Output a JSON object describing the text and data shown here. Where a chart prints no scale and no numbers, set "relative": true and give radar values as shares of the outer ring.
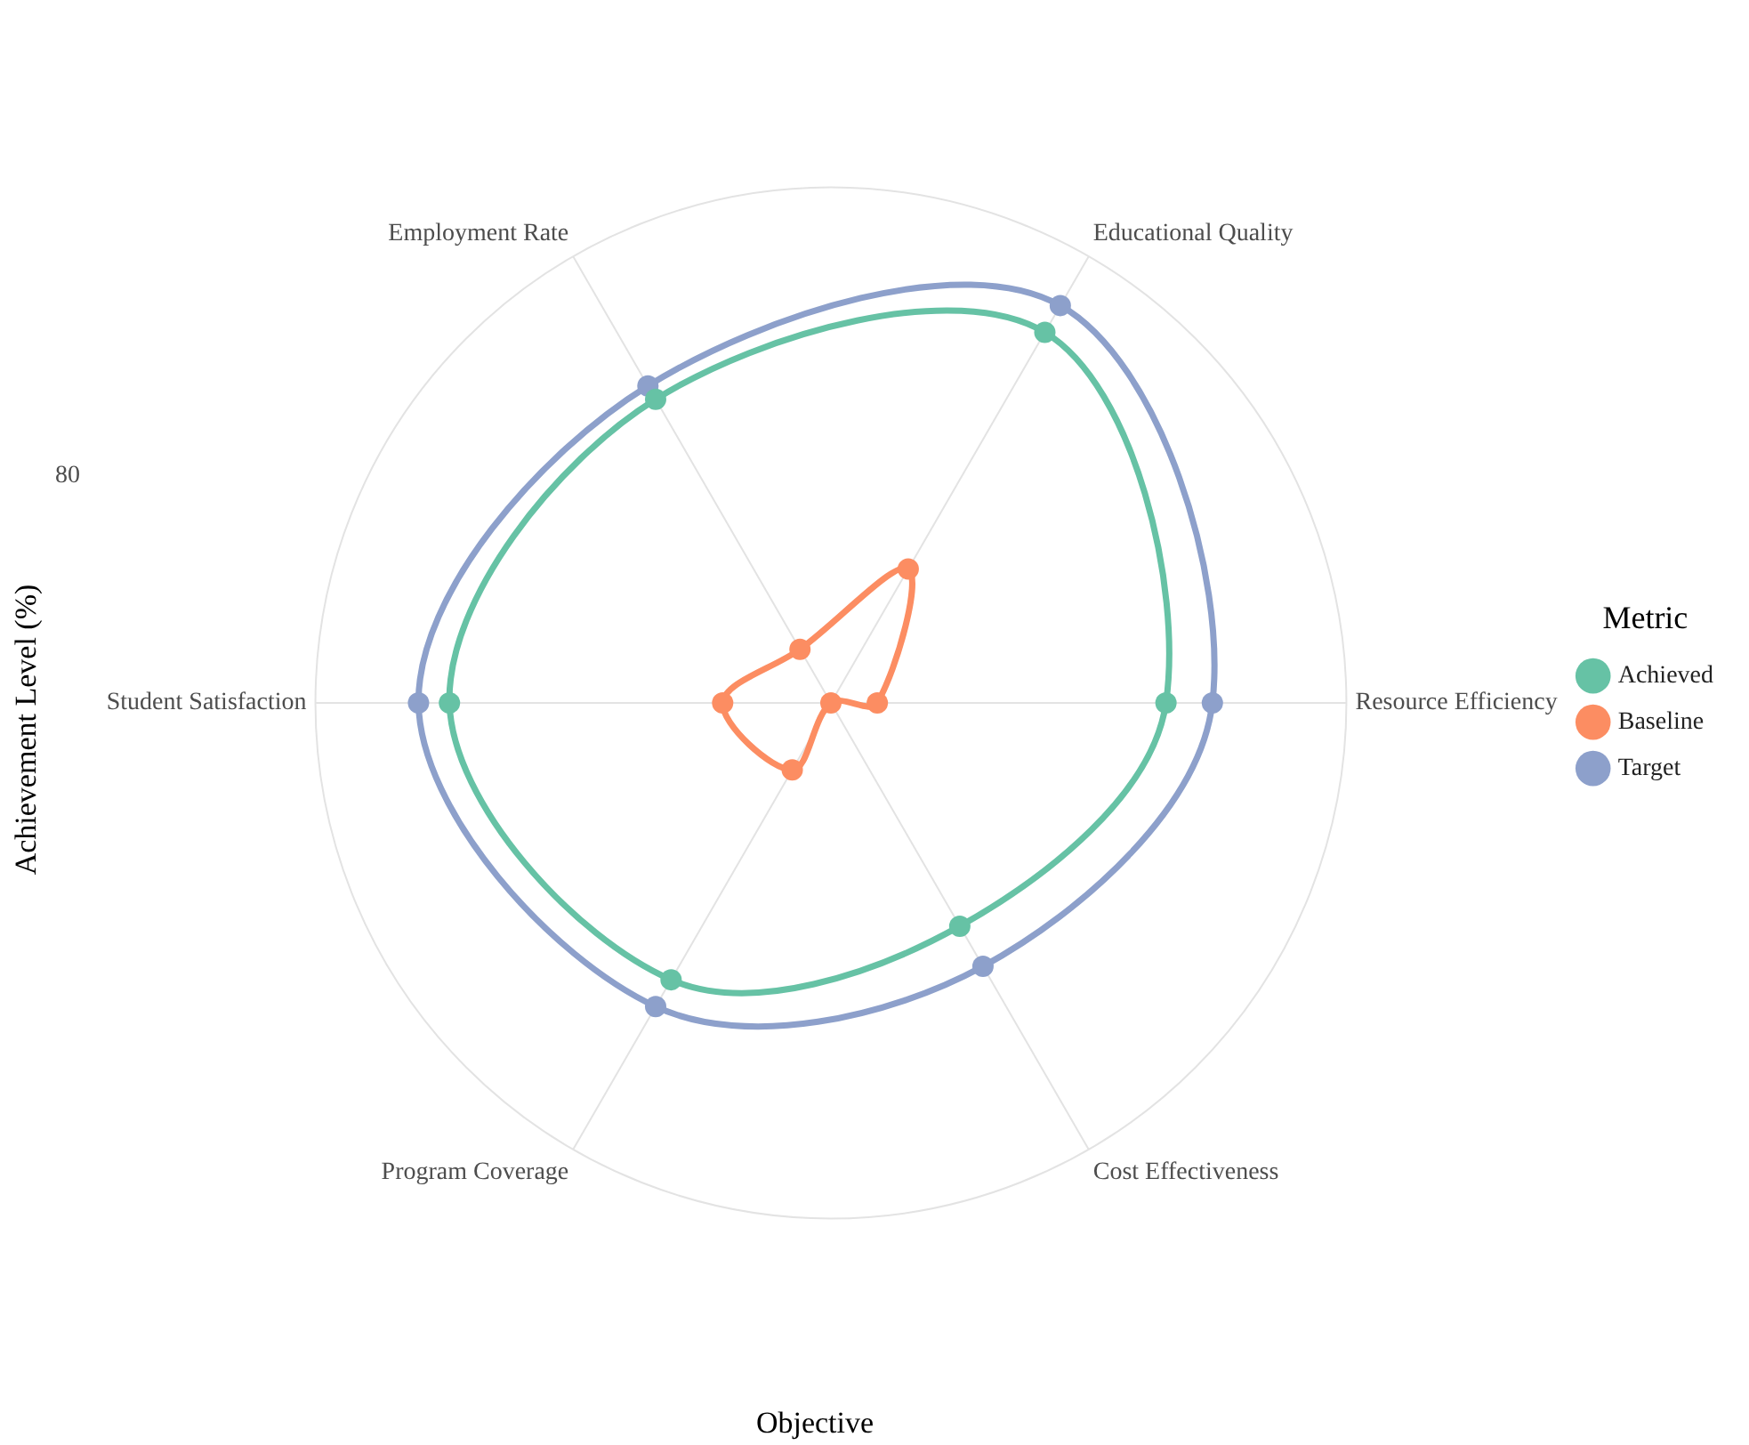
{
  "chart_data": {
    "type": "radar",
    "relative": true,
    "xlabel": "Objective",
    "ylabel": "Achievement Level (%)",
    "legend_title": "Metric",
    "legend": "right",
    "grid": true,
    "marker": "circle",
    "line_style": "solid",
    "categories": [
      "Educational Quality",
      "Resource Efficiency",
      "Cost Effectiveness",
      "Program Coverage",
      "Student Satisfaction",
      "Employment Rate"
    ],
    "annotations": [
      "80"
    ],
    "series": [
      {
        "name": "Achieved",
        "color": "#66c2a5",
        "values": [
          0.83,
          0.65,
          0.5,
          0.62,
          0.74,
          0.68
        ]
      },
      {
        "name": "Baseline",
        "color": "#fc8d62",
        "values": [
          0.3,
          0.09,
          0,
          0.15,
          0.21,
          0.12
        ]
      },
      {
        "name": "Target",
        "color": "#8da0cb",
        "values": [
          0.89,
          0.74,
          0.59,
          0.68,
          0.8,
          0.71
        ]
      }
    ]
  }
}
